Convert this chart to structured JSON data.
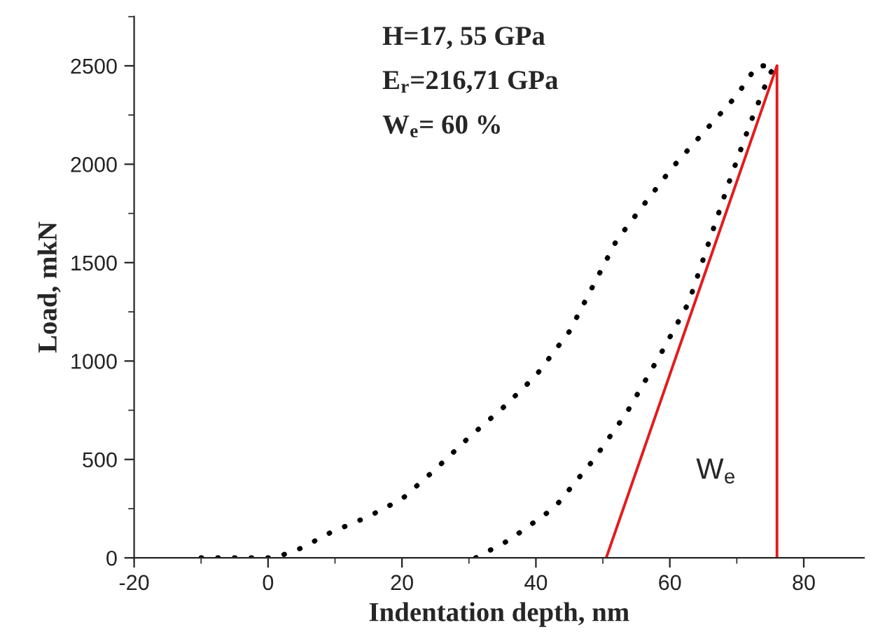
{
  "chart_data": {
    "type": "line",
    "xlabel": "Indentation depth, nm",
    "ylabel": "Load, mkN",
    "xlim": [
      -20,
      89
    ],
    "ylim": [
      0,
      2750
    ],
    "xticks": [
      -20,
      0,
      20,
      40,
      60,
      80
    ],
    "yticks": [
      0,
      500,
      1000,
      1500,
      2000,
      2500
    ],
    "marker": "none",
    "series": [
      {
        "color": "#000000",
        "line_style": "dotted",
        "x": [
          -10,
          -5,
          0,
          1,
          5,
          9.3,
          15,
          20,
          25,
          30,
          35,
          40,
          45,
          52,
          56,
          60.3,
          65,
          70,
          73,
          75
        ],
        "values": [
          0,
          0,
          0,
          0,
          50,
          128,
          210,
          299,
          450,
          612,
          760,
          926,
          1150,
          1610,
          1790,
          1980,
          2160,
          2350,
          2500,
          2500
        ]
      },
      {
        "color": "#000000",
        "line_style": "dotted",
        "x": [
          31,
          36,
          42.8,
          48.6,
          53.6,
          58.7,
          62.8,
          68.7,
          72,
          75,
          76
        ],
        "values": [
          0,
          90,
          256,
          498,
          740,
          1040,
          1296,
          1895,
          2208,
          2464,
          2500
        ]
      },
      {
        "color": "#e41a1c",
        "line_style": "solid",
        "x": [
          50.5,
          76
        ],
        "values": [
          0,
          2500
        ]
      },
      {
        "color": "#e41a1c",
        "line_style": "solid",
        "x": [
          76,
          76
        ],
        "values": [
          2500,
          0
        ]
      }
    ],
    "annotations": [
      "H=17, 55 GPa",
      "E$_{r}$=216,71 GPa",
      "W$_{e}$= 60 %",
      "W$_{e}$"
    ]
  }
}
